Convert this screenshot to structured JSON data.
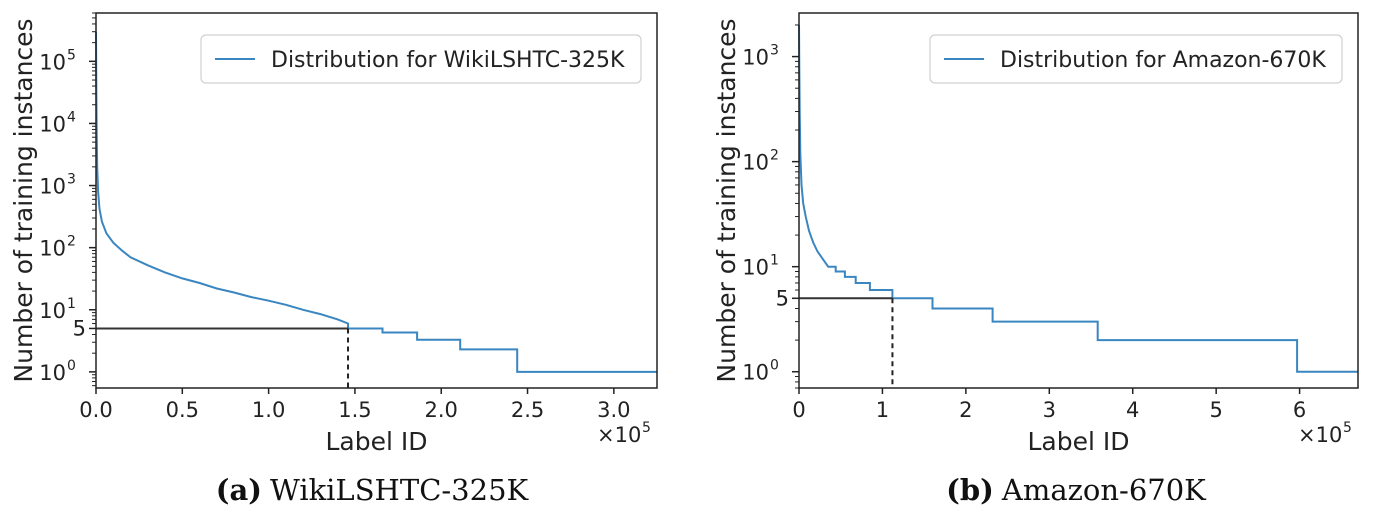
{
  "chart_data": [
    {
      "type": "line",
      "caption_letter": "(a)",
      "caption_text": "WikiLSHTC-325K",
      "xlabel": "Label ID",
      "ylabel": "Number of training instances",
      "x_multiplier_base": "×10",
      "x_multiplier_exp": "5",
      "y_scale": "log",
      "xlim": [
        0,
        325000
      ],
      "ylim": [
        0.55,
        600000
      ],
      "x_ticks": [
        {
          "v": 0,
          "label": "0.0"
        },
        {
          "v": 50000,
          "label": "0.5"
        },
        {
          "v": 100000,
          "label": "1.0"
        },
        {
          "v": 150000,
          "label": "1.5"
        },
        {
          "v": 200000,
          "label": "2.0"
        },
        {
          "v": 250000,
          "label": "2.5"
        },
        {
          "v": 300000,
          "label": "3.0"
        }
      ],
      "y_ticks": [
        {
          "v": 1,
          "base": "10",
          "exp": "0"
        },
        {
          "v": 10,
          "base": "10",
          "exp": "1"
        },
        {
          "v": 100,
          "base": "10",
          "exp": "2"
        },
        {
          "v": 1000,
          "base": "10",
          "exp": "3"
        },
        {
          "v": 10000,
          "base": "10",
          "exp": "4"
        },
        {
          "v": 100000,
          "base": "10",
          "exp": "5"
        }
      ],
      "y_extra_tick": {
        "v": 5,
        "label": "5"
      },
      "threshold": {
        "y": 5,
        "x": 146000
      },
      "legend_position": "top-right",
      "series": [
        {
          "name": "Distribution for WikiLSHTC-325K",
          "color": "#3a86c0",
          "points": [
            [
              0,
              300000
            ],
            [
              150,
              40000
            ],
            [
              400,
              7000
            ],
            [
              700,
              2000
            ],
            [
              1200,
              800
            ],
            [
              2000,
              420
            ],
            [
              3500,
              260
            ],
            [
              6000,
              170
            ],
            [
              10000,
              120
            ],
            [
              15000,
              90
            ],
            [
              20000,
              70
            ],
            [
              30000,
              52
            ],
            [
              40000,
              40
            ],
            [
              50000,
              32
            ],
            [
              60000,
              27
            ],
            [
              70000,
              22
            ],
            [
              80000,
              19
            ],
            [
              90000,
              16
            ],
            [
              100000,
              14
            ],
            [
              110000,
              12
            ],
            [
              120000,
              10
            ],
            [
              130000,
              8.5
            ],
            [
              140000,
              7
            ],
            [
              146000,
              6
            ]
          ],
          "steps": [
            [
              146000,
              5
            ],
            [
              166000,
              4.3
            ],
            [
              186000,
              3.3
            ],
            [
              211000,
              2.3
            ],
            [
              244000,
              1
            ],
            [
              325000,
              1
            ]
          ]
        }
      ]
    },
    {
      "type": "line",
      "caption_letter": "(b)",
      "caption_text": "Amazon-670K",
      "xlabel": "Label ID",
      "ylabel": "Number of training instances",
      "x_multiplier_base": "×10",
      "x_multiplier_exp": "5",
      "y_scale": "log",
      "xlim": [
        0,
        670000
      ],
      "ylim": [
        0.7,
        2600
      ],
      "x_ticks": [
        {
          "v": 0,
          "label": "0"
        },
        {
          "v": 100000,
          "label": "1"
        },
        {
          "v": 200000,
          "label": "2"
        },
        {
          "v": 300000,
          "label": "3"
        },
        {
          "v": 400000,
          "label": "4"
        },
        {
          "v": 500000,
          "label": "5"
        },
        {
          "v": 600000,
          "label": "6"
        }
      ],
      "y_ticks": [
        {
          "v": 1,
          "base": "10",
          "exp": "0"
        },
        {
          "v": 10,
          "base": "10",
          "exp": "1"
        },
        {
          "v": 100,
          "base": "10",
          "exp": "2"
        },
        {
          "v": 1000,
          "base": "10",
          "exp": "3"
        }
      ],
      "y_extra_tick": {
        "v": 5,
        "label": "5"
      },
      "threshold": {
        "y": 5,
        "x": 112000
      },
      "legend_position": "top-right",
      "series": [
        {
          "name": "Distribution for Amazon-670K",
          "color": "#3a86c0",
          "points": [
            [
              0,
              2000
            ],
            [
              300,
              800
            ],
            [
              800,
              300
            ],
            [
              1500,
              120
            ],
            [
              3000,
              60
            ],
            [
              5000,
              40
            ],
            [
              8000,
              30
            ],
            [
              12000,
              22
            ],
            [
              17000,
              17
            ],
            [
              22000,
              14
            ],
            [
              28000,
              12
            ],
            [
              35000,
              10
            ]
          ],
          "steps": [
            [
              35000,
              10
            ],
            [
              44000,
              9
            ],
            [
              55000,
              8
            ],
            [
              68000,
              7
            ],
            [
              85000,
              6
            ],
            [
              112000,
              5
            ],
            [
              160000,
              4
            ],
            [
              232000,
              3
            ],
            [
              358000,
              2
            ],
            [
              597000,
              1
            ],
            [
              670000,
              1
            ]
          ]
        }
      ]
    }
  ]
}
